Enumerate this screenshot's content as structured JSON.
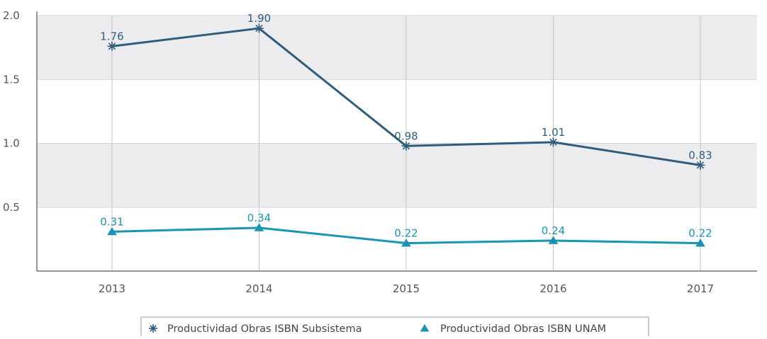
{
  "chart_data": {
    "type": "line",
    "title": "",
    "xlabel": "",
    "ylabel": "",
    "categories": [
      "2013",
      "2014",
      "2015",
      "2016",
      "2017"
    ],
    "ylim": [
      0,
      2.0
    ],
    "yticks": [
      "0.5",
      "1.0",
      "1.5",
      "2.0"
    ],
    "y_tick_values": [
      0.5,
      1.0,
      1.5,
      2.0
    ],
    "grid": true,
    "legend_position": "bottom",
    "series": [
      {
        "name": "Productividad Obras ISBN Subsistema",
        "values": [
          1.76,
          1.9,
          0.98,
          1.01,
          0.83
        ],
        "labels": [
          "1.76",
          "1.90",
          "0.98",
          "1.01",
          "0.83"
        ],
        "color": "#2f5d7c",
        "marker": "asterisk"
      },
      {
        "name": "Productividad Obras ISBN UNAM",
        "values": [
          0.31,
          0.34,
          0.22,
          0.24,
          0.22
        ],
        "labels": [
          "0.31",
          "0.34",
          "0.22",
          "0.24",
          "0.22"
        ],
        "color": "#1b93b5",
        "marker": "triangle"
      }
    ]
  }
}
